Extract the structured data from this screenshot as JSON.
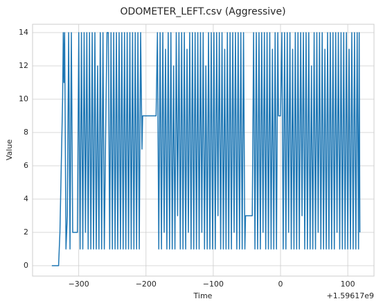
{
  "chart_data": {
    "type": "line",
    "title": "ODOMETER_LEFT.csv (Aggressive)",
    "xlabel": "Time",
    "ylabel": "Value",
    "x_offset_label": "+1.59617e9",
    "color": "#1f77b4",
    "grid": true,
    "xlim": [
      -368.7,
      139
    ],
    "ylim": [
      -0.625,
      14.5
    ],
    "xticks": [
      {
        "value": -300,
        "label": "−300"
      },
      {
        "value": -200,
        "label": "−200"
      },
      {
        "value": -100,
        "label": "−100"
      },
      0,
      100
    ],
    "yticks": [
      0,
      2,
      4,
      6,
      8,
      10,
      12,
      14
    ],
    "x": [
      -340,
      -330,
      -329,
      -328,
      -327,
      -326,
      -325,
      -324,
      -323,
      -322,
      -321,
      -319,
      -317,
      -315,
      -313,
      -311,
      -309,
      -302,
      -300,
      -298,
      -296,
      -294,
      -292,
      -290,
      -288,
      -286,
      -284,
      -282,
      -280,
      -278,
      -276,
      -274,
      -272,
      -270,
      -268,
      -266,
      -264,
      -262,
      -260,
      -258,
      -256,
      -254,
      -252,
      -250,
      -248,
      -246,
      -244,
      -242,
      -240,
      -238,
      -236,
      -234,
      -232,
      -230,
      -228,
      -226,
      -224,
      -222,
      -220,
      -218,
      -216,
      -214,
      -212,
      -210,
      -208,
      -206,
      -205,
      -185,
      -183,
      -181,
      -179,
      -177,
      -175,
      -173,
      -171,
      -169,
      -167,
      -165,
      -163,
      -161,
      -159,
      -157,
      -155,
      -153,
      -151,
      -149,
      -147,
      -145,
      -143,
      -141,
      -139,
      -137,
      -135,
      -133,
      -131,
      -129,
      -127,
      -125,
      -123,
      -121,
      -119,
      -117,
      -115,
      -113,
      -111,
      -109,
      -107,
      -105,
      -103,
      -101,
      -99,
      -97,
      -95,
      -93,
      -91,
      -89,
      -87,
      -85,
      -83,
      -81,
      -79,
      -77,
      -75,
      -73,
      -71,
      -69,
      -67,
      -65,
      -63,
      -61,
      -59,
      -57,
      -55,
      -53,
      -52,
      -42,
      -40,
      -38,
      -36,
      -34,
      -32,
      -30,
      -28,
      -26,
      -24,
      -22,
      -20,
      -18,
      -16,
      -14,
      -12,
      -10,
      -8,
      -6,
      -4,
      -3,
      0,
      2,
      4,
      6,
      8,
      10,
      12,
      14,
      16,
      18,
      20,
      22,
      24,
      26,
      28,
      30,
      32,
      34,
      36,
      38,
      40,
      42,
      44,
      46,
      48,
      50,
      52,
      54,
      56,
      58,
      60,
      62,
      64,
      66,
      68,
      70,
      72,
      74,
      76,
      78,
      80,
      82,
      84,
      86,
      88,
      90,
      92,
      94,
      96,
      98,
      100,
      102,
      104,
      106,
      108,
      110,
      112,
      114,
      116,
      117,
      118
    ],
    "values": [
      0,
      0,
      1,
      2,
      4,
      6,
      8,
      10,
      14,
      11,
      14,
      1,
      3,
      14,
      1,
      14,
      2,
      2,
      14,
      1,
      14,
      1,
      14,
      2,
      14,
      1,
      14,
      1,
      14,
      1,
      14,
      1,
      12,
      1,
      14,
      1,
      14,
      1,
      8,
      14,
      14,
      1,
      14,
      1,
      14,
      1,
      14,
      1,
      14,
      1,
      14,
      1,
      14,
      1,
      14,
      1,
      14,
      1,
      14,
      1,
      14,
      1,
      14,
      1,
      14,
      7,
      9,
      9,
      14,
      1,
      14,
      1,
      14,
      2,
      13,
      1,
      14,
      1,
      14,
      1,
      12,
      1,
      14,
      3,
      14,
      1,
      14,
      1,
      14,
      1,
      13,
      2,
      14,
      1,
      14,
      1,
      14,
      1,
      14,
      1,
      14,
      2,
      14,
      1,
      12,
      1,
      14,
      1,
      14,
      1,
      14,
      1,
      14,
      3,
      14,
      1,
      14,
      1,
      13,
      1,
      14,
      1,
      14,
      1,
      14,
      2,
      14,
      1,
      14,
      1,
      14,
      1,
      14,
      1,
      3,
      3,
      14,
      1,
      14,
      1,
      14,
      1,
      14,
      2,
      14,
      1,
      14,
      1,
      14,
      1,
      13,
      1,
      14,
      1,
      14,
      9,
      9,
      14,
      1,
      14,
      1,
      14,
      2,
      14,
      1,
      13,
      1,
      14,
      1,
      14,
      1,
      14,
      3,
      14,
      1,
      14,
      1,
      14,
      1,
      12,
      1,
      14,
      1,
      14,
      2,
      14,
      1,
      14,
      1,
      13,
      1,
      14,
      1,
      14,
      1,
      14,
      1,
      14,
      2,
      14,
      1,
      14,
      1,
      14,
      1,
      14,
      1,
      13,
      1,
      14,
      1,
      14,
      1,
      14,
      1,
      14,
      2
    ]
  }
}
